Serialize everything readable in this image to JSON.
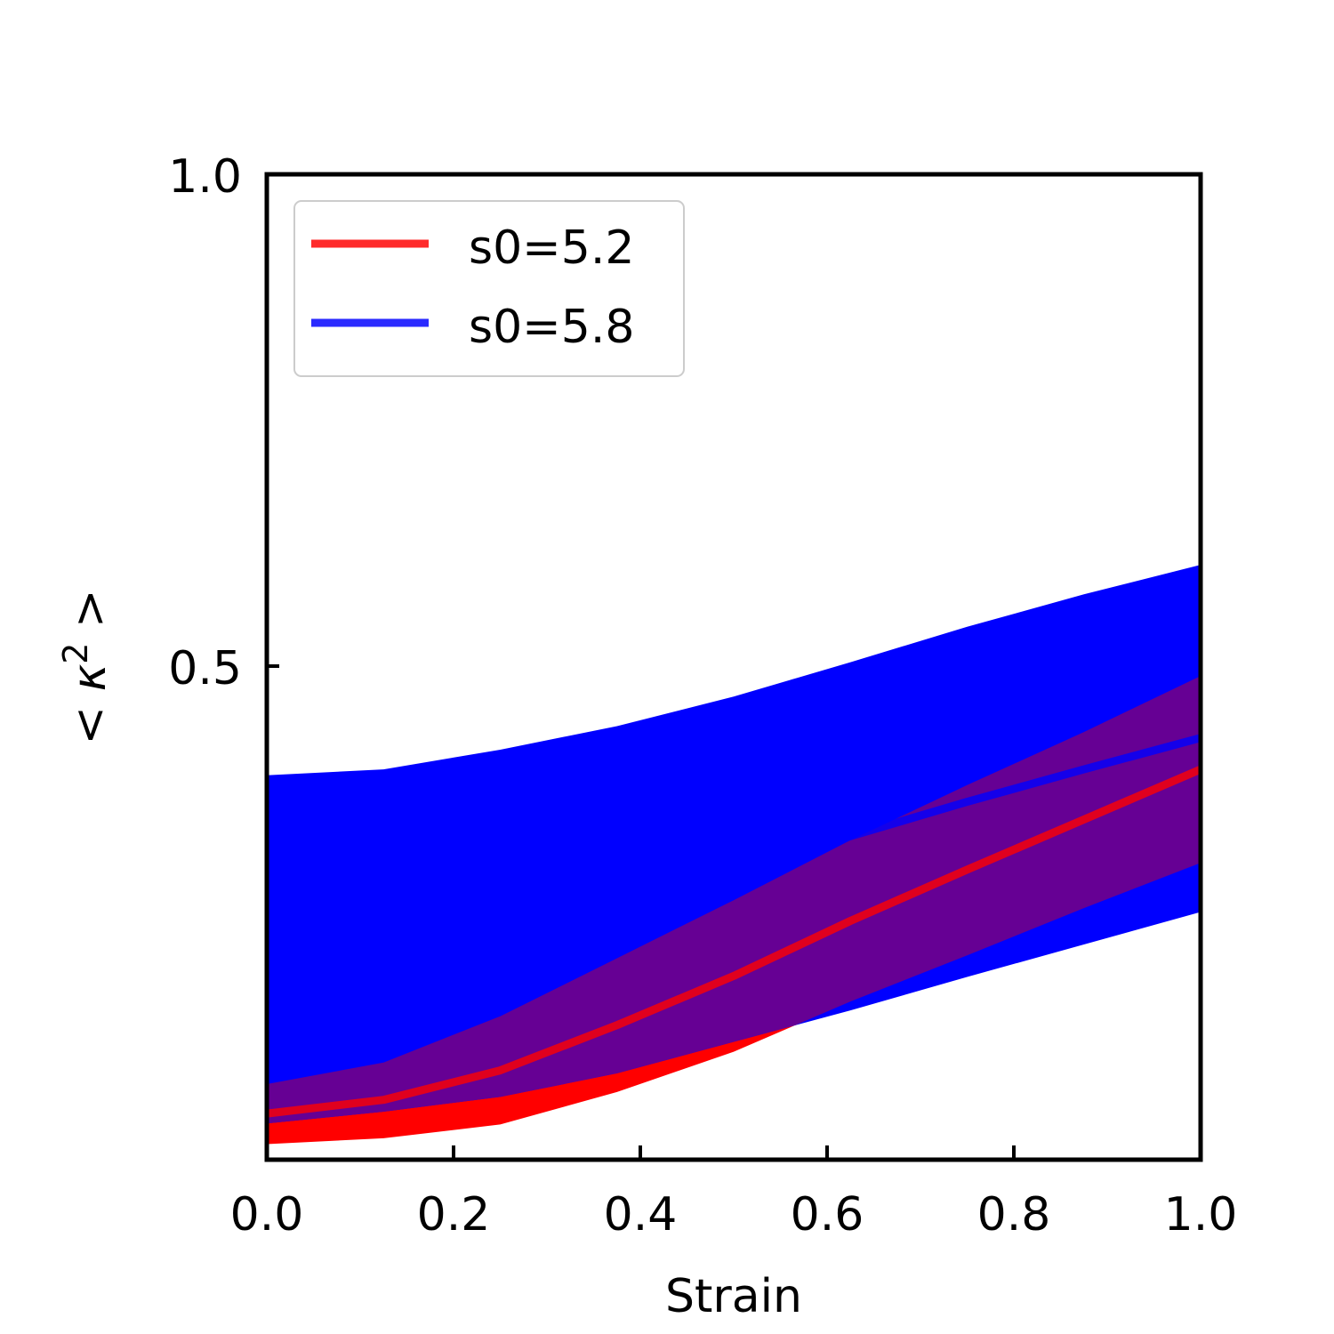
{
  "chart_data": {
    "type": "line",
    "title": "",
    "xlabel": "Strain",
    "ylabel": "< κ² >",
    "xlim": [
      0.0,
      1.0
    ],
    "ylim": [
      0.0,
      1.0
    ],
    "xticks": [
      0.0,
      0.2,
      0.4,
      0.6,
      0.8,
      1.0
    ],
    "xtick_labels": [
      "0.0",
      "0.2",
      "0.4",
      "0.6",
      "0.8",
      "1.0"
    ],
    "yticks": [
      0.5,
      1.0
    ],
    "ytick_labels": [
      "0.5",
      "1.0"
    ],
    "grid": false,
    "legend_position": "upper left",
    "x": [
      0.0,
      0.125,
      0.25,
      0.375,
      0.5,
      0.625,
      0.75,
      0.875,
      1.0
    ],
    "series": [
      {
        "name": "s0=5.2",
        "color": "#ff0000",
        "mean": [
          0.045,
          0.059,
          0.089,
          0.135,
          0.185,
          0.241,
          0.293,
          0.344,
          0.395
        ],
        "lower": [
          0.014,
          0.02,
          0.034,
          0.067,
          0.108,
          0.159,
          0.206,
          0.254,
          0.3
        ],
        "upper": [
          0.075,
          0.097,
          0.144,
          0.203,
          0.262,
          0.323,
          0.379,
          0.433,
          0.49
        ]
      },
      {
        "name": "s0=5.8",
        "color": "#0000ff",
        "mean": [
          0.212,
          0.221,
          0.239,
          0.263,
          0.294,
          0.327,
          0.362,
          0.395,
          0.427
        ],
        "lower": [
          0.035,
          0.047,
          0.062,
          0.086,
          0.118,
          0.15,
          0.184,
          0.217,
          0.25
        ],
        "upper": [
          0.389,
          0.395,
          0.415,
          0.439,
          0.469,
          0.504,
          0.54,
          0.573,
          0.603
        ]
      }
    ]
  },
  "legend": {
    "items": [
      {
        "label": "s0=5.2",
        "color": "#ff2a2a"
      },
      {
        "label": "s0=5.8",
        "color": "#2a2aff"
      }
    ]
  },
  "axes": {
    "xlabel": "Strain",
    "ylabel_prefix": "< ",
    "ylabel_kappa": "κ",
    "ylabel_sup": "2",
    "ylabel_suffix": " >"
  },
  "colors": {
    "overlap": "#660094",
    "red_line": "rgba(255,0,0,0.8)",
    "blue_line": "rgba(0,0,255,0.8)"
  }
}
